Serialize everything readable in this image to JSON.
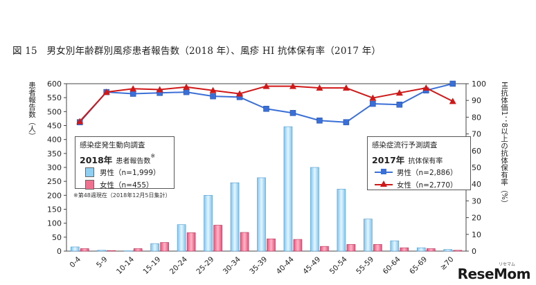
{
  "figure_title": "図 15　男女別年齢群別風疹患者報告数（2018 年）、風疹 HI 抗体保有率（2017 年）",
  "chart_data": {
    "type": "bar+line",
    "categories": [
      "0-4",
      "5-9",
      "10-14",
      "15-19",
      "20-24",
      "25-29",
      "30-34",
      "35-39",
      "40-44",
      "45-49",
      "50-54",
      "55-59",
      "60-64",
      "65-69",
      "≥70"
    ],
    "left_axis": {
      "label": "患者報告数（人）",
      "ylim": [
        0,
        600
      ],
      "ticks": [
        0,
        50,
        100,
        150,
        200,
        250,
        300,
        350,
        400,
        450,
        500,
        550,
        600
      ]
    },
    "right_axis": {
      "label": "HI抗体価1：8以上の抗体保有率（%）",
      "ylim": [
        0,
        100
      ],
      "ticks": [
        0,
        10,
        20,
        30,
        40,
        50,
        60,
        70,
        80,
        90,
        100
      ]
    },
    "bar_series": [
      {
        "key": "male_cases",
        "name": "男性（n=1,999）",
        "color": "#8fd0f2",
        "values": [
          15,
          3,
          1,
          27,
          95,
          200,
          245,
          263,
          446,
          300,
          222,
          115,
          37,
          12,
          6
        ]
      },
      {
        "key": "female_cases",
        "name": "女性（n=455）",
        "color": "#f07090",
        "values": [
          9,
          2,
          9,
          31,
          66,
          93,
          67,
          44,
          42,
          17,
          24,
          24,
          12,
          9,
          3
        ]
      }
    ],
    "line_series": [
      {
        "key": "male_rate",
        "name": "男性（n=2,886）",
        "color": "#3a6fd8",
        "marker": "square",
        "values": [
          77,
          95,
          94,
          94.5,
          95,
          92.5,
          92,
          85,
          82.5,
          78,
          77,
          88,
          87.5,
          96,
          100
        ]
      },
      {
        "key": "female_rate",
        "name": "女性（n=2,770）",
        "color": "#d01818",
        "marker": "triangle",
        "values": [
          77.5,
          95,
          97,
          96.5,
          98,
          96,
          94,
          98.5,
          98.5,
          97.5,
          97.5,
          91.5,
          94.5,
          97.5,
          89.5
        ]
      }
    ],
    "legend_left": {
      "header": "感染症発生動向調査",
      "year": "2018年",
      "metric": "患者報告数",
      "metric_mark": "※",
      "note": "※第48週現在（2018年12月5日集計）"
    },
    "legend_right": {
      "header": "感染症流行予測調査",
      "year": "2017年",
      "metric": "抗体保有率"
    },
    "grid": false
  },
  "watermark": {
    "text": "ReseMom",
    "sub": "リセマム"
  }
}
